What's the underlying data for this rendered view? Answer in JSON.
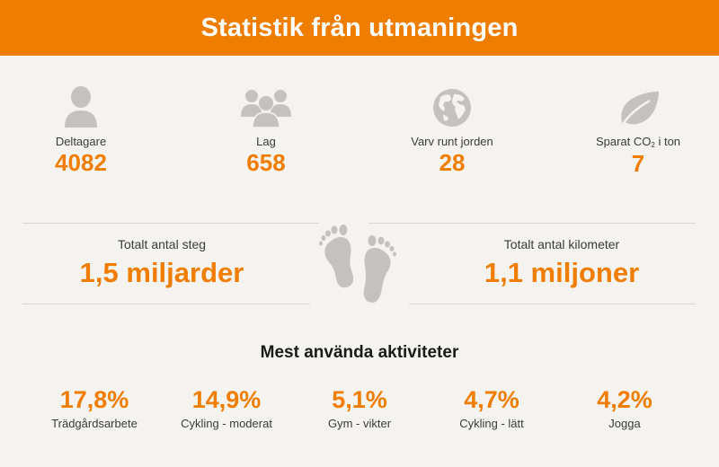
{
  "header": {
    "title": "Statistik från utmaningen"
  },
  "stats": [
    {
      "icon": "person-icon",
      "label": "Deltagare",
      "value": "4082"
    },
    {
      "icon": "group-icon",
      "label": "Lag",
      "value": "658"
    },
    {
      "icon": "globe-icon",
      "label": "Varv runt jorden",
      "value": "28"
    },
    {
      "icon": "leaf-icon",
      "label_before": "Sparat CO",
      "label_sub": "2",
      "label_after": " i ton",
      "value": "7"
    }
  ],
  "totals": {
    "steps": {
      "label": "Totalt antal steg",
      "value": "1,5 miljarder"
    },
    "km": {
      "label": "Totalt antal kilometer",
      "value": "1,1 miljoner"
    },
    "icon": "footprints-icon"
  },
  "activities": {
    "title": "Mest använda aktiviteter",
    "items": [
      {
        "value": "17,8%",
        "label": "Trädgårdsarbete"
      },
      {
        "value": "14,9%",
        "label": "Cykling - moderat"
      },
      {
        "value": "5,1%",
        "label": "Gym - vikter"
      },
      {
        "value": "4,7%",
        "label": "Cykling - lätt"
      },
      {
        "value": "4,2%",
        "label": "Jogga"
      }
    ]
  },
  "colors": {
    "accent": "#ef7d00",
    "icon": "#c4c2bf",
    "background": "#f5f3ef"
  }
}
